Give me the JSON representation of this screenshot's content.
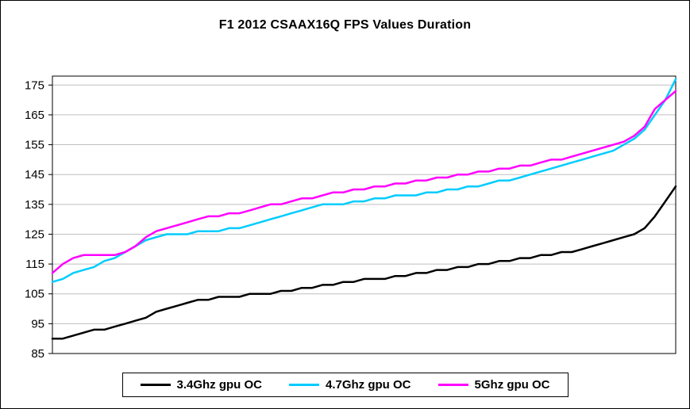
{
  "chart_data": {
    "type": "line",
    "title": "F1 2012 CSAAX16Q FPS Values Duration",
    "xlabel": "",
    "ylabel": "",
    "ylim": [
      85,
      178
    ],
    "yticks": [
      85,
      95,
      105,
      115,
      125,
      135,
      145,
      155,
      165,
      175
    ],
    "x_tick_labels_visible": false,
    "grid": true,
    "gridline_color": "#bfbfbf",
    "legend_position": "bottom",
    "series": [
      {
        "name": "3.4Ghz gpu OC",
        "color": "#000000",
        "values": [
          90,
          90,
          91,
          92,
          93,
          93,
          94,
          95,
          96,
          97,
          99,
          100,
          101,
          102,
          103,
          103,
          104,
          104,
          104,
          105,
          105,
          105,
          106,
          106,
          107,
          107,
          108,
          108,
          109,
          109,
          110,
          110,
          110,
          111,
          111,
          112,
          112,
          113,
          113,
          114,
          114,
          115,
          115,
          116,
          116,
          117,
          117,
          118,
          118,
          119,
          119,
          120,
          121,
          122,
          123,
          124,
          125,
          127,
          131,
          136,
          141
        ]
      },
      {
        "name": "4.7Ghz gpu OC",
        "color": "#00CCFF",
        "values": [
          109,
          110,
          112,
          113,
          114,
          116,
          117,
          119,
          121,
          123,
          124,
          125,
          125,
          125,
          126,
          126,
          126,
          127,
          127,
          128,
          129,
          130,
          131,
          132,
          133,
          134,
          135,
          135,
          135,
          136,
          136,
          137,
          137,
          138,
          138,
          138,
          139,
          139,
          140,
          140,
          141,
          141,
          142,
          143,
          143,
          144,
          145,
          146,
          147,
          148,
          149,
          150,
          151,
          152,
          153,
          155,
          157,
          160,
          165,
          170,
          177
        ]
      },
      {
        "name": "5Ghz gpu OC",
        "color": "#FF00FF",
        "values": [
          112,
          115,
          117,
          118,
          118,
          118,
          118,
          119,
          121,
          124,
          126,
          127,
          128,
          129,
          130,
          131,
          131,
          132,
          132,
          133,
          134,
          135,
          135,
          136,
          137,
          137,
          138,
          139,
          139,
          140,
          140,
          141,
          141,
          142,
          142,
          143,
          143,
          144,
          144,
          145,
          145,
          146,
          146,
          147,
          147,
          148,
          148,
          149,
          150,
          150,
          151,
          152,
          153,
          154,
          155,
          156,
          158,
          161,
          167,
          170,
          173
        ]
      }
    ]
  }
}
